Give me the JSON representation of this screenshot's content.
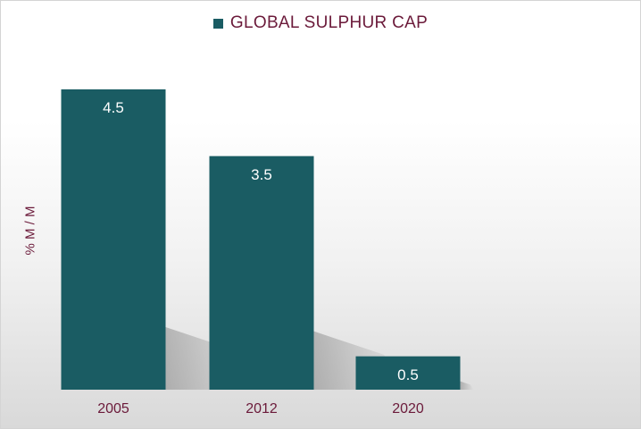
{
  "chart_data": {
    "type": "bar",
    "legend": "GLOBAL SULPHUR CAP",
    "ylabel": "% M / M",
    "xlabel": "",
    "categories": [
      "2005",
      "2012",
      "2020"
    ],
    "values": [
      4.5,
      3.5,
      0.5
    ],
    "data_labels": [
      "4.5",
      "3.5",
      "0.5"
    ],
    "ylim": [
      0,
      4.5
    ],
    "grid": false,
    "legend_position": "top",
    "colors": {
      "bar": "#1a5c63",
      "text": "#6b1a3a",
      "data_label": "#ffffff"
    }
  }
}
